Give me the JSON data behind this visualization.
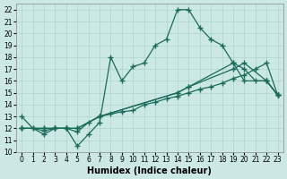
{
  "xlabel": "Humidex (Indice chaleur)",
  "bg_color": "#cce8e4",
  "line_color": "#1a6b5a",
  "grid_color": "#aad4cc",
  "xlim": [
    -0.5,
    23.5
  ],
  "ylim": [
    10,
    22.5
  ],
  "yticks": [
    10,
    11,
    12,
    13,
    14,
    15,
    16,
    17,
    18,
    19,
    20,
    21,
    22
  ],
  "xticks": [
    0,
    1,
    2,
    3,
    4,
    5,
    6,
    7,
    8,
    9,
    10,
    11,
    12,
    13,
    14,
    15,
    16,
    17,
    18,
    19,
    20,
    21,
    22,
    23
  ],
  "line1_x": [
    0,
    1,
    2,
    3,
    4,
    5,
    6,
    7,
    8,
    9,
    10,
    11,
    12,
    13,
    14,
    15,
    16,
    17,
    18,
    19,
    20,
    22,
    23
  ],
  "line1_y": [
    13,
    12,
    11.5,
    12,
    12,
    10.5,
    11.5,
    12.5,
    18.0,
    16.0,
    17.2,
    17.5,
    19.0,
    19.5,
    22.0,
    22.0,
    20.5,
    19.5,
    19.0,
    17.5,
    16.0,
    16.0,
    14.8
  ],
  "line2_x": [
    0,
    1,
    2,
    3,
    4,
    5,
    6,
    7,
    8,
    9,
    10,
    11,
    12,
    13,
    14,
    15,
    16,
    17,
    18,
    19,
    20,
    21,
    22,
    23
  ],
  "line2_y": [
    12,
    12,
    11.8,
    12,
    12,
    11.7,
    12.5,
    13.0,
    13.2,
    13.4,
    13.5,
    14.0,
    14.2,
    14.5,
    14.7,
    15.0,
    15.3,
    15.5,
    15.8,
    16.2,
    16.5,
    17.0,
    17.5,
    14.8
  ],
  "line3_x": [
    0,
    2,
    3,
    4,
    5,
    7,
    14,
    15,
    19,
    20,
    22,
    23
  ],
  "line3_y": [
    12,
    12,
    12,
    12,
    12,
    13.0,
    15.0,
    15.5,
    17.0,
    17.5,
    16.0,
    14.8
  ],
  "line4_x": [
    0,
    2,
    3,
    4,
    5,
    7,
    14,
    15,
    19,
    20,
    21,
    22,
    23
  ],
  "line4_y": [
    12,
    12,
    12,
    12,
    12,
    13.0,
    15.0,
    15.5,
    17.5,
    17.0,
    16.0,
    16.0,
    14.8
  ]
}
